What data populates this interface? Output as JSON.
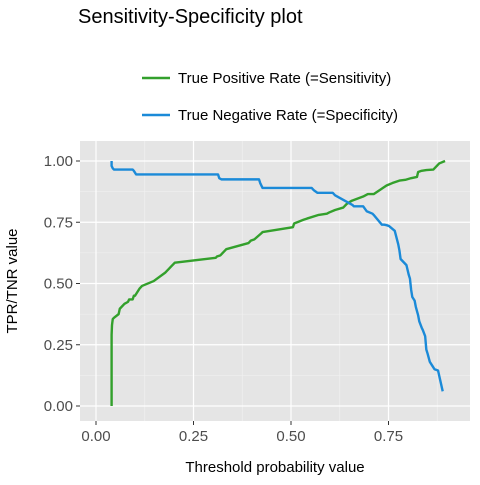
{
  "chart_data": {
    "type": "line",
    "title": "Sensitivity-Specificity plot",
    "xlabel": "Threshold probability value",
    "ylabel": "TPR/TNR value",
    "xlim": [
      0.0,
      0.9
    ],
    "ylim": [
      0.0,
      1.0
    ],
    "x_ticks": [
      "0.00",
      "0.25",
      "0.50",
      "0.75"
    ],
    "y_ticks": [
      "0.00",
      "0.25",
      "0.50",
      "0.75",
      "1.00"
    ],
    "grid": true,
    "legend_position": "top",
    "series": [
      {
        "name": "True Positive Rate (=Sensitivity)",
        "color": "#33a02c",
        "x": [
          0.04,
          0.04,
          0.041,
          0.043,
          0.046,
          0.058,
          0.061,
          0.073,
          0.082,
          0.085,
          0.094,
          0.097,
          0.1,
          0.112,
          0.118,
          0.148,
          0.178,
          0.187,
          0.193,
          0.199,
          0.202,
          0.307,
          0.31,
          0.319,
          0.334,
          0.391,
          0.397,
          0.406,
          0.424,
          0.427,
          0.505,
          0.508,
          0.532,
          0.541,
          0.571,
          0.592,
          0.598,
          0.613,
          0.634,
          0.643,
          0.656,
          0.685,
          0.697,
          0.712,
          0.745,
          0.76,
          0.778,
          0.793,
          0.808,
          0.823,
          0.826,
          0.835,
          0.847,
          0.865,
          0.868,
          0.88,
          0.895
        ],
        "y": [
          0.0,
          0.29,
          0.33,
          0.355,
          0.36,
          0.375,
          0.397,
          0.417,
          0.425,
          0.435,
          0.435,
          0.45,
          0.45,
          0.48,
          0.49,
          0.51,
          0.545,
          0.56,
          0.57,
          0.58,
          0.585,
          0.605,
          0.61,
          0.615,
          0.64,
          0.665,
          0.675,
          0.68,
          0.705,
          0.71,
          0.73,
          0.745,
          0.76,
          0.765,
          0.78,
          0.785,
          0.79,
          0.8,
          0.81,
          0.825,
          0.838,
          0.855,
          0.865,
          0.865,
          0.9,
          0.91,
          0.92,
          0.923,
          0.93,
          0.935,
          0.955,
          0.96,
          0.963,
          0.965,
          0.97,
          0.99,
          1.0
        ]
      },
      {
        "name": "True Negative Rate (=Specificity)",
        "color": "#1b8ad8",
        "x": [
          0.04,
          0.04,
          0.043,
          0.046,
          0.094,
          0.097,
          0.103,
          0.313,
          0.316,
          0.322,
          0.418,
          0.421,
          0.427,
          0.553,
          0.559,
          0.568,
          0.607,
          0.613,
          0.658,
          0.661,
          0.685,
          0.694,
          0.709,
          0.712,
          0.733,
          0.739,
          0.745,
          0.751,
          0.766,
          0.775,
          0.778,
          0.781,
          0.796,
          0.802,
          0.805,
          0.808,
          0.811,
          0.817,
          0.82,
          0.826,
          0.829,
          0.835,
          0.838,
          0.844,
          0.847,
          0.85,
          0.856,
          0.862,
          0.868,
          0.877,
          0.889
        ],
        "y": [
          1.0,
          0.98,
          0.97,
          0.965,
          0.965,
          0.96,
          0.945,
          0.945,
          0.93,
          0.925,
          0.925,
          0.91,
          0.89,
          0.89,
          0.88,
          0.87,
          0.87,
          0.86,
          0.82,
          0.815,
          0.815,
          0.795,
          0.785,
          0.78,
          0.74,
          0.74,
          0.738,
          0.735,
          0.715,
          0.66,
          0.635,
          0.6,
          0.575,
          0.535,
          0.52,
          0.475,
          0.445,
          0.43,
          0.405,
          0.37,
          0.345,
          0.32,
          0.31,
          0.285,
          0.23,
          0.215,
          0.18,
          0.165,
          0.15,
          0.145,
          0.06
        ]
      }
    ]
  }
}
